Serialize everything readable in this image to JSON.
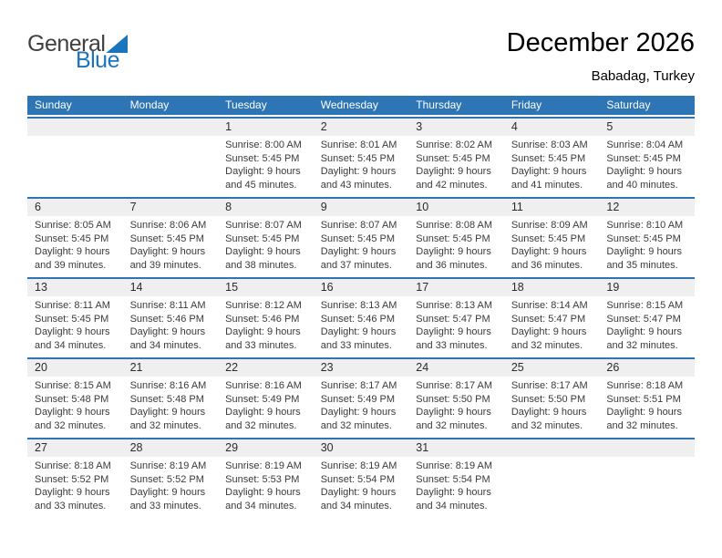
{
  "logo": {
    "word1": "General",
    "word2": "Blue"
  },
  "header": {
    "title": "December 2026",
    "subtitle": "Babadag, Turkey"
  },
  "colors": {
    "header_blue": "#2E75B5",
    "row_border_blue": "#2E75B5",
    "day_band_gray": "#EFEFEF",
    "logo_blue": "#1B75BC",
    "logo_dark": "#404040",
    "header_text": "#FFFFFF"
  },
  "calendar": {
    "weekdays": [
      "Sunday",
      "Monday",
      "Tuesday",
      "Wednesday",
      "Thursday",
      "Friday",
      "Saturday"
    ],
    "weeks": [
      [
        {
          "day": "",
          "sunrise": "",
          "sunset": "",
          "daylight": ""
        },
        {
          "day": "",
          "sunrise": "",
          "sunset": "",
          "daylight": ""
        },
        {
          "day": "1",
          "sunrise": "Sunrise: 8:00 AM",
          "sunset": "Sunset: 5:45 PM",
          "daylight": "Daylight: 9 hours and 45 minutes."
        },
        {
          "day": "2",
          "sunrise": "Sunrise: 8:01 AM",
          "sunset": "Sunset: 5:45 PM",
          "daylight": "Daylight: 9 hours and 43 minutes."
        },
        {
          "day": "3",
          "sunrise": "Sunrise: 8:02 AM",
          "sunset": "Sunset: 5:45 PM",
          "daylight": "Daylight: 9 hours and 42 minutes."
        },
        {
          "day": "4",
          "sunrise": "Sunrise: 8:03 AM",
          "sunset": "Sunset: 5:45 PM",
          "daylight": "Daylight: 9 hours and 41 minutes."
        },
        {
          "day": "5",
          "sunrise": "Sunrise: 8:04 AM",
          "sunset": "Sunset: 5:45 PM",
          "daylight": "Daylight: 9 hours and 40 minutes."
        }
      ],
      [
        {
          "day": "6",
          "sunrise": "Sunrise: 8:05 AM",
          "sunset": "Sunset: 5:45 PM",
          "daylight": "Daylight: 9 hours and 39 minutes."
        },
        {
          "day": "7",
          "sunrise": "Sunrise: 8:06 AM",
          "sunset": "Sunset: 5:45 PM",
          "daylight": "Daylight: 9 hours and 39 minutes."
        },
        {
          "day": "8",
          "sunrise": "Sunrise: 8:07 AM",
          "sunset": "Sunset: 5:45 PM",
          "daylight": "Daylight: 9 hours and 38 minutes."
        },
        {
          "day": "9",
          "sunrise": "Sunrise: 8:07 AM",
          "sunset": "Sunset: 5:45 PM",
          "daylight": "Daylight: 9 hours and 37 minutes."
        },
        {
          "day": "10",
          "sunrise": "Sunrise: 8:08 AM",
          "sunset": "Sunset: 5:45 PM",
          "daylight": "Daylight: 9 hours and 36 minutes."
        },
        {
          "day": "11",
          "sunrise": "Sunrise: 8:09 AM",
          "sunset": "Sunset: 5:45 PM",
          "daylight": "Daylight: 9 hours and 36 minutes."
        },
        {
          "day": "12",
          "sunrise": "Sunrise: 8:10 AM",
          "sunset": "Sunset: 5:45 PM",
          "daylight": "Daylight: 9 hours and 35 minutes."
        }
      ],
      [
        {
          "day": "13",
          "sunrise": "Sunrise: 8:11 AM",
          "sunset": "Sunset: 5:45 PM",
          "daylight": "Daylight: 9 hours and 34 minutes."
        },
        {
          "day": "14",
          "sunrise": "Sunrise: 8:11 AM",
          "sunset": "Sunset: 5:46 PM",
          "daylight": "Daylight: 9 hours and 34 minutes."
        },
        {
          "day": "15",
          "sunrise": "Sunrise: 8:12 AM",
          "sunset": "Sunset: 5:46 PM",
          "daylight": "Daylight: 9 hours and 33 minutes."
        },
        {
          "day": "16",
          "sunrise": "Sunrise: 8:13 AM",
          "sunset": "Sunset: 5:46 PM",
          "daylight": "Daylight: 9 hours and 33 minutes."
        },
        {
          "day": "17",
          "sunrise": "Sunrise: 8:13 AM",
          "sunset": "Sunset: 5:47 PM",
          "daylight": "Daylight: 9 hours and 33 minutes."
        },
        {
          "day": "18",
          "sunrise": "Sunrise: 8:14 AM",
          "sunset": "Sunset: 5:47 PM",
          "daylight": "Daylight: 9 hours and 32 minutes."
        },
        {
          "day": "19",
          "sunrise": "Sunrise: 8:15 AM",
          "sunset": "Sunset: 5:47 PM",
          "daylight": "Daylight: 9 hours and 32 minutes."
        }
      ],
      [
        {
          "day": "20",
          "sunrise": "Sunrise: 8:15 AM",
          "sunset": "Sunset: 5:48 PM",
          "daylight": "Daylight: 9 hours and 32 minutes."
        },
        {
          "day": "21",
          "sunrise": "Sunrise: 8:16 AM",
          "sunset": "Sunset: 5:48 PM",
          "daylight": "Daylight: 9 hours and 32 minutes."
        },
        {
          "day": "22",
          "sunrise": "Sunrise: 8:16 AM",
          "sunset": "Sunset: 5:49 PM",
          "daylight": "Daylight: 9 hours and 32 minutes."
        },
        {
          "day": "23",
          "sunrise": "Sunrise: 8:17 AM",
          "sunset": "Sunset: 5:49 PM",
          "daylight": "Daylight: 9 hours and 32 minutes."
        },
        {
          "day": "24",
          "sunrise": "Sunrise: 8:17 AM",
          "sunset": "Sunset: 5:50 PM",
          "daylight": "Daylight: 9 hours and 32 minutes."
        },
        {
          "day": "25",
          "sunrise": "Sunrise: 8:17 AM",
          "sunset": "Sunset: 5:50 PM",
          "daylight": "Daylight: 9 hours and 32 minutes."
        },
        {
          "day": "26",
          "sunrise": "Sunrise: 8:18 AM",
          "sunset": "Sunset: 5:51 PM",
          "daylight": "Daylight: 9 hours and 32 minutes."
        }
      ],
      [
        {
          "day": "27",
          "sunrise": "Sunrise: 8:18 AM",
          "sunset": "Sunset: 5:52 PM",
          "daylight": "Daylight: 9 hours and 33 minutes."
        },
        {
          "day": "28",
          "sunrise": "Sunrise: 8:19 AM",
          "sunset": "Sunset: 5:52 PM",
          "daylight": "Daylight: 9 hours and 33 minutes."
        },
        {
          "day": "29",
          "sunrise": "Sunrise: 8:19 AM",
          "sunset": "Sunset: 5:53 PM",
          "daylight": "Daylight: 9 hours and 34 minutes."
        },
        {
          "day": "30",
          "sunrise": "Sunrise: 8:19 AM",
          "sunset": "Sunset: 5:54 PM",
          "daylight": "Daylight: 9 hours and 34 minutes."
        },
        {
          "day": "31",
          "sunrise": "Sunrise: 8:19 AM",
          "sunset": "Sunset: 5:54 PM",
          "daylight": "Daylight: 9 hours and 34 minutes."
        },
        {
          "day": "",
          "sunrise": "",
          "sunset": "",
          "daylight": ""
        },
        {
          "day": "",
          "sunrise": "",
          "sunset": "",
          "daylight": ""
        }
      ]
    ]
  }
}
